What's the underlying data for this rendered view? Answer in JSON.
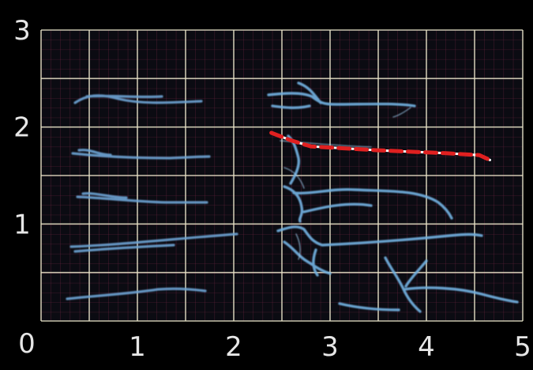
{
  "axes": {
    "x_ticks": [
      "0",
      "1",
      "2",
      "3",
      "4",
      "5"
    ],
    "y_ticks": [
      "0",
      "1",
      "2",
      "3"
    ],
    "x_range": [
      0,
      5
    ],
    "y_range": [
      0,
      3
    ],
    "grid": true
  },
  "colors": {
    "background": "#000000",
    "grid_major": "#e8e4c8",
    "grid_minor": "#c43a6a",
    "roots": "#6fa6d6",
    "trace": "#e02020",
    "trace_highlight": "#ffffff"
  },
  "trace": {
    "style": "dashed",
    "points": [
      [
        2.39,
        1.94
      ],
      [
        2.6,
        1.86
      ],
      [
        2.8,
        1.8
      ],
      [
        3.5,
        1.76
      ],
      [
        4.2,
        1.73
      ],
      [
        4.55,
        1.71
      ],
      [
        4.66,
        1.66
      ]
    ]
  }
}
